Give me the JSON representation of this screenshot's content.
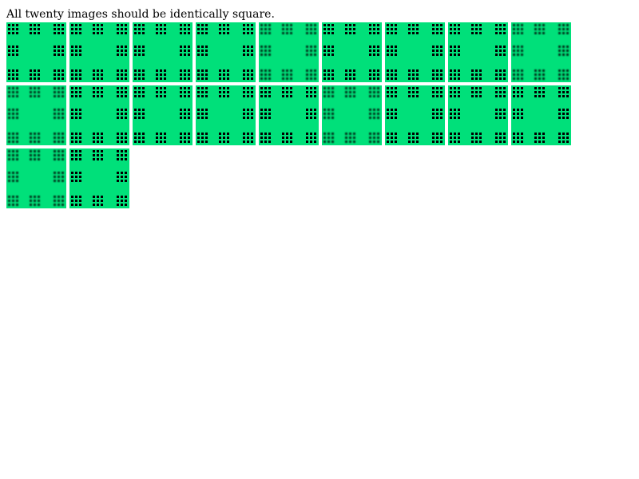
{
  "page": {
    "heading": "All twenty images should be identically square."
  },
  "gallery": {
    "count": 20,
    "tile_color": "#00e07a",
    "dot_color": "#000000",
    "tiles": [
      {
        "style": "sharp"
      },
      {
        "style": "sharp"
      },
      {
        "style": "sharp"
      },
      {
        "style": "sharp"
      },
      {
        "style": "blurred"
      },
      {
        "style": "sharp"
      },
      {
        "style": "sharp"
      },
      {
        "style": "sharp"
      },
      {
        "style": "blurred"
      },
      {
        "style": "blurred"
      },
      {
        "style": "sharp"
      },
      {
        "style": "sharp"
      },
      {
        "style": "sharp"
      },
      {
        "style": "sharp"
      },
      {
        "style": "blurred"
      },
      {
        "style": "sharp"
      },
      {
        "style": "sharp"
      },
      {
        "style": "sharp"
      },
      {
        "style": "blurred"
      },
      {
        "style": "sharp"
      }
    ]
  }
}
